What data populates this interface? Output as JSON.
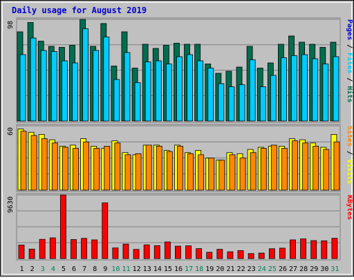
{
  "chart_data": {
    "type": "bar",
    "title": "Daily usage for August 2019",
    "categories": [
      "1",
      "2",
      "3",
      "4",
      "5",
      "6",
      "7",
      "8",
      "9",
      "10",
      "11",
      "12",
      "13",
      "14",
      "15",
      "16",
      "17",
      "18",
      "19",
      "20",
      "21",
      "22",
      "23",
      "24",
      "25",
      "26",
      "27",
      "28",
      "29",
      "30",
      "31"
    ],
    "weekend_days": [
      3,
      4,
      10,
      11,
      17,
      18,
      24,
      25,
      31
    ],
    "panels": [
      {
        "id": "hits-files-pages",
        "ylabel_parts": [
          "Pages",
          "Files",
          "Hits"
        ],
        "ymax_label": "98",
        "ylim": [
          0,
          98
        ],
        "series": [
          {
            "name": "Hits",
            "color": "#006d4f",
            "values": [
              86,
              95,
              77,
              72,
              71,
              73,
              98,
              72,
              94,
              53,
              86,
              51,
              74,
              70,
              73,
              75,
              74,
              74,
              55,
              46,
              48,
              52,
              72,
              51,
              56,
              74,
              82,
              76,
              74,
              71,
              76
            ]
          },
          {
            "name": "Files",
            "color": "#00ccff",
            "values": [
              64,
              80,
              68,
              67,
              58,
              56,
              89,
              68,
              81,
              40,
              66,
              37,
              57,
              58,
              55,
              62,
              64,
              58,
              51,
              36,
              33,
              35,
              59,
              33,
              44,
              61,
              63,
              64,
              60,
              55,
              62
            ]
          },
          {
            "name": "Pages",
            "color": "#0000cc",
            "values": [
              0,
              0,
              0,
              0,
              0,
              0,
              0,
              0,
              0,
              0,
              0,
              0,
              0,
              0,
              0,
              0,
              0,
              0,
              0,
              0,
              0,
              0,
              0,
              0,
              0,
              0,
              0,
              0,
              0,
              0,
              0
            ]
          }
        ]
      },
      {
        "id": "visits-sites",
        "ylabel_parts": [
          "Sites",
          "Visits"
        ],
        "ymax_label": "60",
        "ylim": [
          0,
          60
        ],
        "series": [
          {
            "name": "Visits",
            "color": "#ffff00",
            "values": [
              57,
              54,
              52,
              47,
              41,
              42,
              48,
              41,
              39,
              46,
              35,
              33,
              42,
              42,
              37,
              42,
              35,
              37,
              30,
              28,
              35,
              34,
              38,
              40,
              41,
              41,
              48,
              47,
              44,
              40,
              52
            ]
          },
          {
            "name": "Sites",
            "color": "#ff8800",
            "values": [
              55,
              51,
              48,
              44,
              40,
              39,
              45,
              39,
              41,
              44,
              33,
              34,
              42,
              41,
              36,
              41,
              34,
              33,
              30,
              28,
              33,
              30,
              35,
              39,
              42,
              39,
              46,
              44,
              41,
              38,
              45
            ]
          }
        ]
      },
      {
        "id": "kbytes",
        "ylabel_parts": [
          "KBytes"
        ],
        "ymax_label": "9630",
        "ylim": [
          0,
          9630
        ],
        "series": [
          {
            "name": "KBytes",
            "color": "#ff0000",
            "values": [
              2050,
              1440,
              2910,
              3140,
              9630,
              2880,
              3060,
              2830,
              8440,
              1610,
              2190,
              1390,
              2080,
              1960,
              2520,
              1880,
              1930,
              1510,
              950,
              1400,
              1030,
              1210,
              760,
              830,
              1490,
              1580,
              2830,
              2980,
              2720,
              2690,
              3070
            ]
          }
        ]
      }
    ]
  }
}
